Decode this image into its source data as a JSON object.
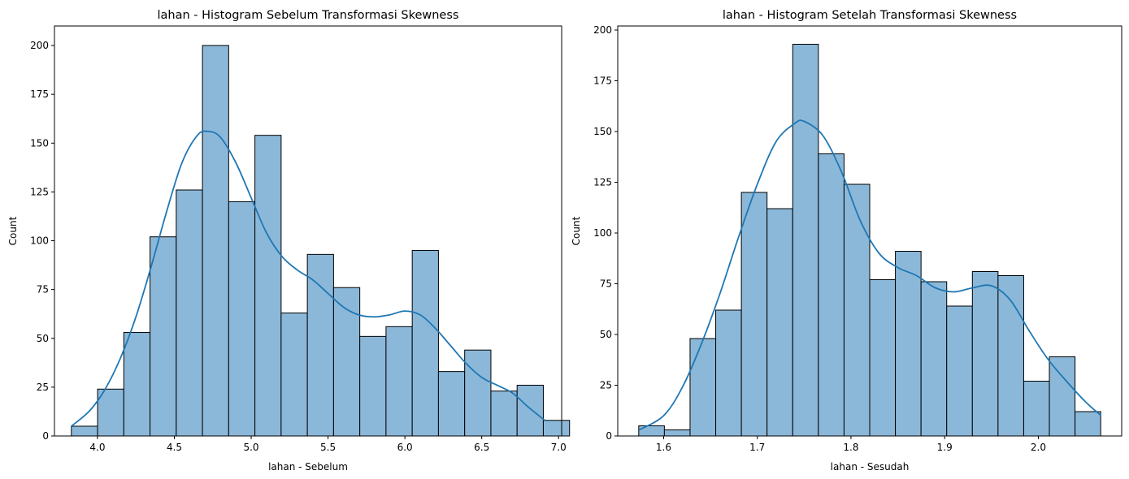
{
  "chart_data": [
    {
      "type": "bar",
      "title": "lahan - Histogram Sebelum Transformasi Skewness",
      "xlabel": "lahan - Sebelum",
      "ylabel": "Count",
      "xlim": [
        3.72,
        7.02
      ],
      "ylim": [
        0,
        210
      ],
      "xticks": [
        4.0,
        4.5,
        5.0,
        5.5,
        6.0,
        6.5,
        7.0
      ],
      "xtick_labels": [
        "4.0",
        "4.5",
        "5.0",
        "5.5",
        "6.0",
        "6.5",
        "7.0"
      ],
      "yticks": [
        0,
        25,
        50,
        75,
        100,
        125,
        150,
        175,
        200
      ],
      "ytick_labels": [
        "0",
        "25",
        "50",
        "75",
        "100",
        "125",
        "150",
        "175",
        "200"
      ],
      "bin_start": 3.83,
      "bin_width": 0.1706,
      "values": [
        5,
        24,
        53,
        102,
        126,
        200,
        120,
        154,
        63,
        93,
        76,
        51,
        56,
        95,
        33,
        44,
        23,
        26,
        8
      ],
      "kde": {
        "x": [
          3.83,
          3.95,
          4.05,
          4.15,
          4.25,
          4.35,
          4.45,
          4.55,
          4.65,
          4.72,
          4.8,
          4.9,
          5.0,
          5.1,
          5.2,
          5.3,
          5.4,
          5.5,
          5.6,
          5.7,
          5.8,
          5.9,
          6.0,
          6.1,
          6.2,
          6.3,
          6.4,
          6.5,
          6.6,
          6.7,
          6.8,
          6.91
        ],
        "y": [
          5,
          13,
          24,
          40,
          61,
          87,
          115,
          140,
          154,
          156,
          153,
          140,
          122,
          104,
          92,
          85,
          80,
          73,
          66,
          62,
          61,
          62,
          64,
          62,
          55,
          46,
          37,
          30,
          26,
          22,
          15,
          8
        ]
      }
    },
    {
      "type": "bar",
      "title": "lahan - Histogram Setelah Transformasi Skewness",
      "xlabel": "lahan - Sesudah",
      "ylabel": "Count",
      "xlim": [
        1.551,
        2.089
      ],
      "ylim": [
        0,
        202
      ],
      "xticks": [
        1.6,
        1.7,
        1.8,
        1.9,
        2.0
      ],
      "xtick_labels": [
        "1.6",
        "1.7",
        "1.8",
        "1.9",
        "2.0"
      ],
      "yticks": [
        0,
        25,
        50,
        75,
        100,
        125,
        150,
        175,
        200
      ],
      "ytick_labels": [
        "0",
        "25",
        "50",
        "75",
        "100",
        "125",
        "150",
        "175",
        "200"
      ],
      "bin_start": 1.5734,
      "bin_width": 0.0274,
      "values": [
        5,
        3,
        48,
        62,
        120,
        112,
        193,
        139,
        124,
        77,
        91,
        76,
        64,
        81,
        79,
        27,
        39,
        12
      ],
      "kde": {
        "x": [
          1.574,
          1.6,
          1.62,
          1.64,
          1.66,
          1.68,
          1.7,
          1.72,
          1.74,
          1.75,
          1.77,
          1.79,
          1.81,
          1.83,
          1.85,
          1.87,
          1.89,
          1.91,
          1.93,
          1.95,
          1.97,
          1.99,
          2.01,
          2.03,
          2.05,
          2.067
        ],
        "y": [
          3,
          10,
          24,
          45,
          70,
          98,
          124,
          145,
          154,
          155,
          148,
          130,
          106,
          90,
          83,
          79,
          73,
          71,
          73,
          74,
          67,
          52,
          38,
          27,
          17,
          10
        ]
      }
    }
  ]
}
